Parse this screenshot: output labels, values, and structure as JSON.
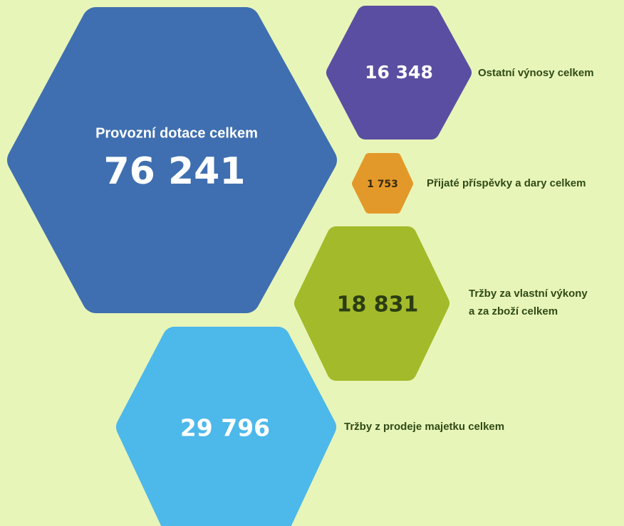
{
  "items": [
    {
      "label_lines": [
        "Provozní dotace celkem"
      ],
      "value": "76 241"
    },
    {
      "label_lines": [
        "Ostatní výnosy celkem"
      ],
      "value": "16 348"
    },
    {
      "label_lines": [
        "Přijaté příspěvky a dary celkem"
      ],
      "value": "1 753"
    },
    {
      "label_lines": [
        "Tržby za vlastní výkony",
        "a za zboží celkem"
      ],
      "value": "18 831"
    },
    {
      "label_lines": [
        "Tržby z prodeje majetku celkem"
      ],
      "value": "29 796"
    }
  ]
}
